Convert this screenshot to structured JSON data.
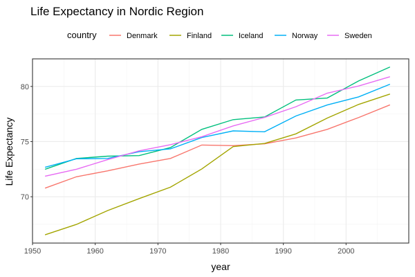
{
  "chart_data": {
    "type": "line",
    "title": "Life Expectancy in Nordic Region",
    "xlabel": "year",
    "ylabel": "Life Expectancy",
    "legend_title": "country",
    "legend_position": "top",
    "grid": true,
    "xlim": [
      1950,
      2010
    ],
    "ylim": [
      65.8,
      82.5
    ],
    "xticks": [
      1950,
      1960,
      1970,
      1980,
      1990,
      2000
    ],
    "yticks": [
      70,
      75,
      80
    ],
    "x": [
      1952,
      1957,
      1962,
      1967,
      1972,
      1977,
      1982,
      1987,
      1992,
      1997,
      2002,
      2007
    ],
    "series": [
      {
        "name": "Denmark",
        "color": "#F8766D",
        "values": [
          70.78,
          71.81,
          72.35,
          72.96,
          73.47,
          74.69,
          74.63,
          74.8,
          75.33,
          76.11,
          77.18,
          78.33
        ]
      },
      {
        "name": "Finland",
        "color": "#A3A500",
        "values": [
          66.55,
          67.49,
          68.75,
          69.83,
          70.87,
          72.52,
          74.55,
          74.83,
          75.7,
          77.13,
          78.37,
          79.31
        ]
      },
      {
        "name": "Iceland",
        "color": "#00BF7D",
        "values": [
          72.49,
          73.47,
          73.68,
          73.73,
          74.46,
          76.11,
          76.99,
          77.23,
          78.77,
          78.95,
          80.5,
          81.76
        ]
      },
      {
        "name": "Norway",
        "color": "#00B0F6",
        "values": [
          72.67,
          73.44,
          73.47,
          74.08,
          74.34,
          75.37,
          75.97,
          75.89,
          77.32,
          78.32,
          79.05,
          80.2
        ]
      },
      {
        "name": "Sweden",
        "color": "#E76BF3",
        "values": [
          71.86,
          72.49,
          73.37,
          74.16,
          74.72,
          75.44,
          76.42,
          77.19,
          78.16,
          79.39,
          80.04,
          80.88
        ]
      }
    ]
  }
}
